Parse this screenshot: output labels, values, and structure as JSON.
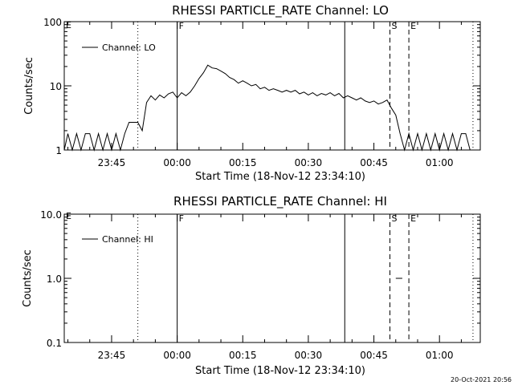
{
  "chart_data": [
    {
      "type": "line",
      "title": "RHESSI PARTICLE_RATE Channel: LO",
      "xlabel": "Start Time (18-Nov-12 23:34:10)",
      "ylabel": "Counts/sec",
      "yscale": "log",
      "ylim": [
        1,
        100
      ],
      "y_ticks": [
        1,
        10,
        100
      ],
      "y_tick_labels": [
        "1",
        "10",
        "100"
      ],
      "xlim": [
        "23:34:10",
        "01:09:20"
      ],
      "x_ticks": [
        "23:45",
        "00:00",
        "00:15",
        "00:30",
        "00:45",
        "01:00"
      ],
      "x_tick_labels": [
        "23:45",
        "00:00",
        "00:15",
        "00:30",
        "00:45",
        "01:00"
      ],
      "legend": {
        "position": "top-left",
        "entries": [
          "Channel: LO"
        ]
      },
      "series": [
        {
          "name": "Channel: LO",
          "x": [
            "23:34:10",
            "23:35:00",
            "23:36:00",
            "23:37:00",
            "23:38:00",
            "23:39:00",
            "23:40:00",
            "23:41:00",
            "23:42:00",
            "23:43:00",
            "23:44:00",
            "23:45:00",
            "23:46:00",
            "23:47:00",
            "23:48:00",
            "23:49:00",
            "23:50:00",
            "23:51:00",
            "23:52:00",
            "23:53:00",
            "23:54:00",
            "23:55:00",
            "23:56:00",
            "23:57:00",
            "23:58:00",
            "23:59:00",
            "00:00:00",
            "00:01:00",
            "00:02:00",
            "00:03:00",
            "00:04:00",
            "00:05:00",
            "00:06:00",
            "00:07:00",
            "00:08:00",
            "00:09:00",
            "00:10:00",
            "00:11:00",
            "00:12:00",
            "00:13:00",
            "00:14:00",
            "00:15:00",
            "00:16:00",
            "00:17:00",
            "00:18:00",
            "00:19:00",
            "00:20:00",
            "00:21:00",
            "00:22:00",
            "00:23:00",
            "00:24:00",
            "00:25:00",
            "00:26:00",
            "00:27:00",
            "00:28:00",
            "00:29:00",
            "00:30:00",
            "00:31:00",
            "00:32:00",
            "00:33:00",
            "00:34:00",
            "00:35:00",
            "00:36:00",
            "00:37:00",
            "00:38:00",
            "00:39:00",
            "00:40:00",
            "00:41:00",
            "00:42:00",
            "00:43:00",
            "00:44:00",
            "00:45:00",
            "00:46:00",
            "00:47:00",
            "00:48:00",
            "00:49:00",
            "00:50:00",
            "00:51:00",
            "00:52:00",
            "00:53:00",
            "00:54:00",
            "00:55:00",
            "00:56:00",
            "00:57:00",
            "00:58:00",
            "00:59:00",
            "01:00:00",
            "01:01:00",
            "01:02:00",
            "01:03:00",
            "01:04:00",
            "01:05:00",
            "01:06:00",
            "01:07:00",
            "01:08:00"
          ],
          "values": [
            1,
            1.8,
            1,
            1.8,
            1,
            1.8,
            1.8,
            1,
            1.8,
            1,
            1.8,
            1,
            1.8,
            1,
            1.8,
            2.7,
            2.7,
            2.7,
            2,
            5.5,
            7,
            6,
            7.2,
            6.5,
            7.5,
            8,
            6.5,
            7.8,
            7,
            8,
            10,
            13,
            16,
            21,
            19,
            18.5,
            17,
            15.5,
            13.5,
            12.5,
            11,
            12,
            11,
            10,
            10.5,
            9,
            9.5,
            8.5,
            9,
            8.5,
            8,
            8.5,
            8,
            8.5,
            7.5,
            8,
            7.2,
            7.8,
            7,
            7.6,
            7.2,
            7.8,
            7,
            7.6,
            6.5,
            7,
            6.5,
            6,
            6.5,
            5.8,
            5.5,
            5.8,
            5.2,
            5.5,
            6,
            4.5,
            3.5,
            1.8,
            1,
            1.8,
            1,
            1.8,
            1,
            1.8,
            1,
            1.8,
            1,
            1.8,
            1,
            1.8,
            1,
            1.8,
            1.8,
            1,
            1
          ]
        }
      ],
      "vertical_lines": [
        {
          "time": "23:51:00",
          "style": "dotted"
        },
        {
          "time": "00:00:00",
          "style": "solid",
          "label": "F"
        },
        {
          "time": "00:38:20",
          "style": "solid"
        },
        {
          "time": "00:48:40",
          "style": "dashed",
          "label": "S"
        },
        {
          "time": "00:53:00",
          "style": "dashed",
          "label": "E"
        },
        {
          "time": "01:07:40",
          "style": "dotted"
        }
      ],
      "corner_labels": [
        "E"
      ]
    },
    {
      "type": "line",
      "title": "RHESSI PARTICLE_RATE Channel: HI",
      "xlabel": "Start Time (18-Nov-12 23:34:10)",
      "ylabel": "Counts/sec",
      "yscale": "log",
      "ylim": [
        0.1,
        10
      ],
      "y_ticks": [
        0.1,
        1,
        10
      ],
      "y_tick_labels": [
        "0.1",
        "1.0",
        "10.0"
      ],
      "xlim": [
        "23:34:10",
        "01:09:20"
      ],
      "x_ticks": [
        "23:45",
        "00:00",
        "00:15",
        "00:30",
        "00:45",
        "01:00"
      ],
      "x_tick_labels": [
        "23:45",
        "00:00",
        "00:15",
        "00:30",
        "00:45",
        "01:00"
      ],
      "legend": {
        "position": "top-left",
        "entries": [
          "Channel: HI"
        ]
      },
      "series": [
        {
          "name": "Channel: HI",
          "x": [
            "00:50:00",
            "00:51:30"
          ],
          "values": [
            1,
            1
          ]
        }
      ],
      "vertical_lines": [
        {
          "time": "23:51:00",
          "style": "dotted"
        },
        {
          "time": "00:00:00",
          "style": "solid",
          "label": "F"
        },
        {
          "time": "00:38:20",
          "style": "solid"
        },
        {
          "time": "00:48:40",
          "style": "dashed",
          "label": "S"
        },
        {
          "time": "00:53:00",
          "style": "dashed",
          "label": "E"
        },
        {
          "time": "01:07:40",
          "style": "dotted"
        }
      ],
      "corner_labels": [
        "E"
      ]
    }
  ],
  "footer": {
    "timestamp": "20-Oct-2021 20:56"
  },
  "colors": {
    "background": "#ffffff",
    "foreground": "#000000"
  }
}
